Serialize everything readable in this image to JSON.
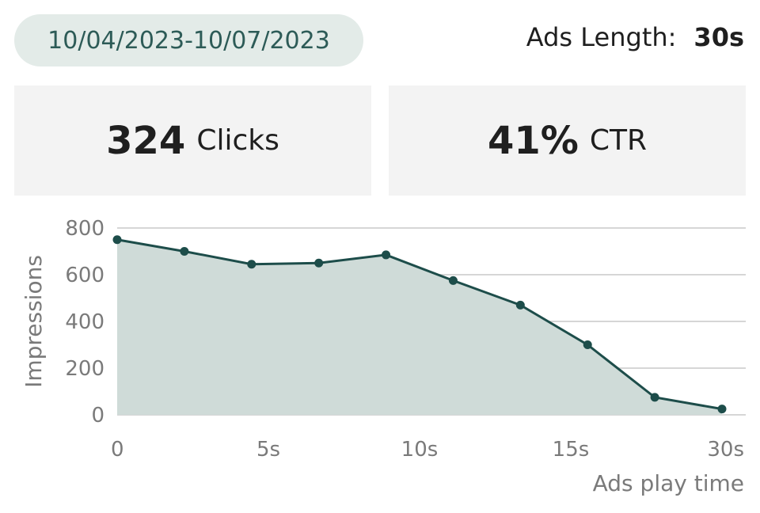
{
  "header": {
    "date_range": "10/04/2023-10/07/2023",
    "ads_length_label": "Ads Length:",
    "ads_length_value": "30s"
  },
  "stats": {
    "clicks": {
      "value": "324",
      "label": "Clicks"
    },
    "ctr": {
      "value": "41%",
      "label": "CTR"
    }
  },
  "colors": {
    "line": "#1d4d4a",
    "area": "#cfdbd8",
    "grid": "#d6d6d6"
  },
  "chart_data": {
    "type": "area",
    "xlabel": "Ads play time",
    "ylabel": "Impressions",
    "ylim": [
      0,
      800
    ],
    "y_ticks": [
      0,
      200,
      400,
      600,
      800
    ],
    "x_tick_labels": [
      "0",
      "5s",
      "10s",
      "15s",
      "30s"
    ],
    "grid": true,
    "series": [
      {
        "values": [
          750,
          700,
          645,
          650,
          685,
          575,
          470,
          300,
          75,
          25
        ]
      }
    ]
  }
}
